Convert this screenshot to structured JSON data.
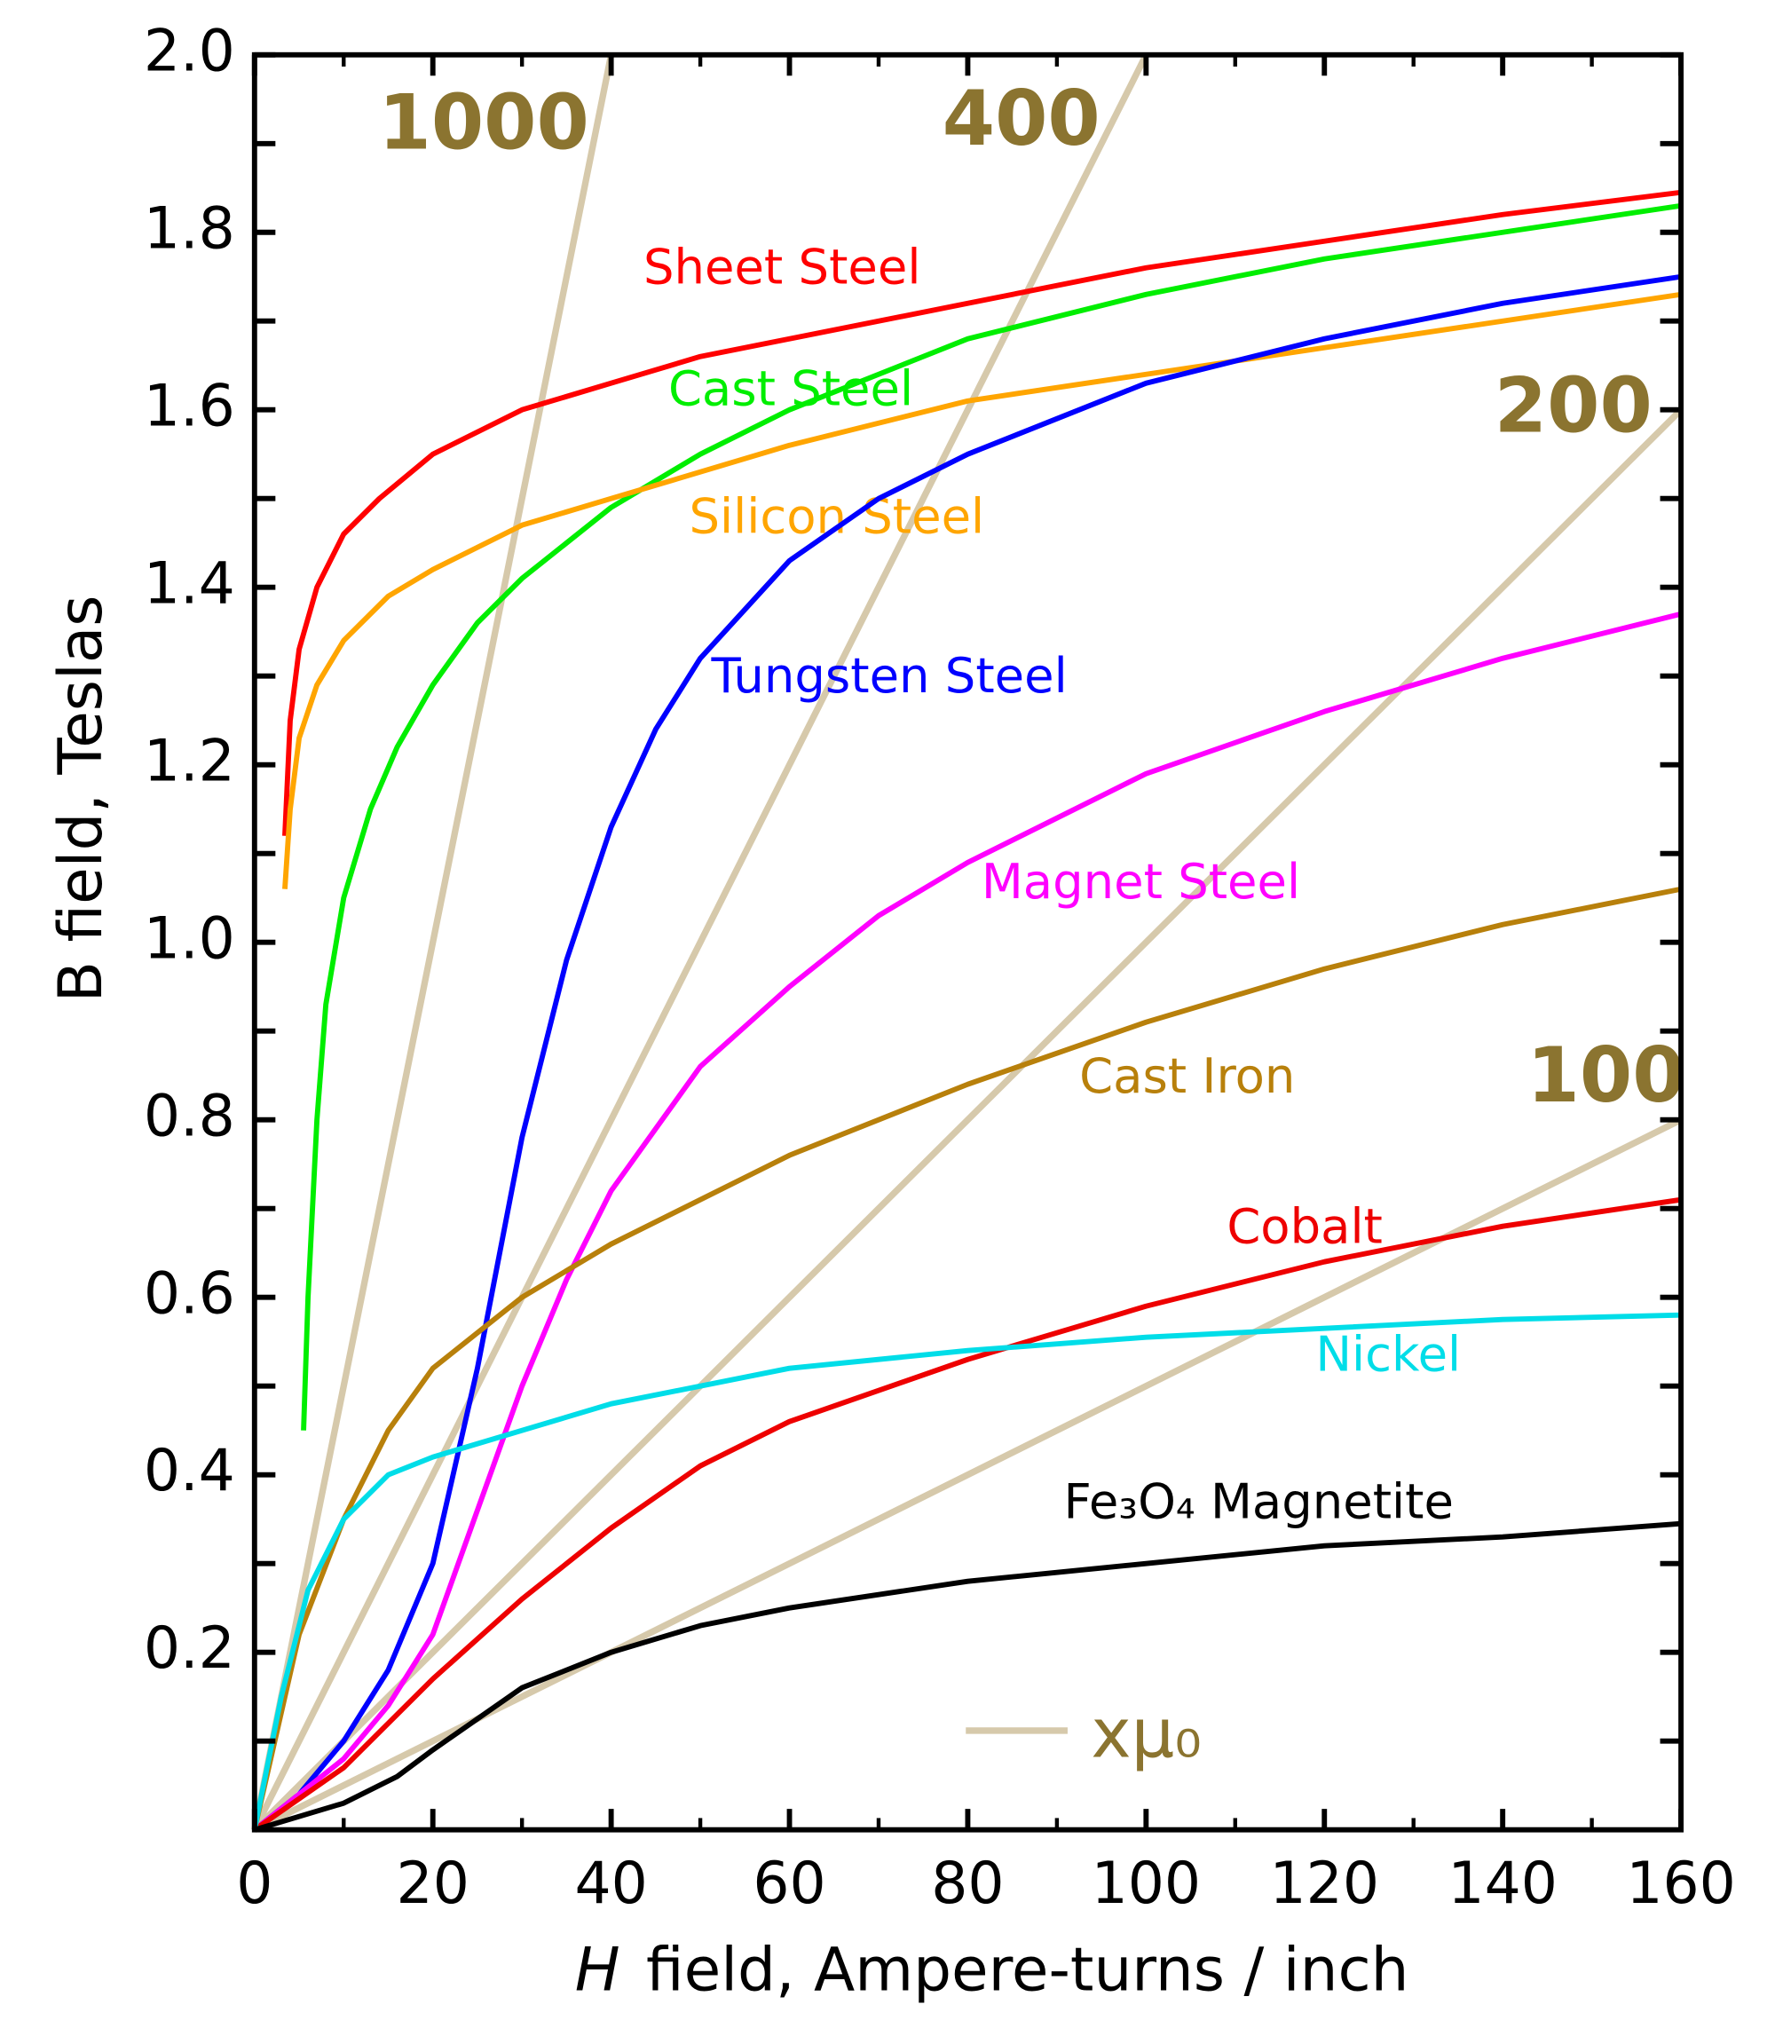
{
  "chart_data": {
    "type": "line",
    "x_label_var": "H",
    "x_label": "field, Ampere-turns / inch",
    "y_label": "B field, Teslas",
    "xlim": [
      0,
      160
    ],
    "ylim": [
      0,
      2
    ],
    "xticks": [
      0,
      20,
      40,
      60,
      80,
      100,
      120,
      140,
      160
    ],
    "yticks": [
      0.2,
      0.4,
      0.6,
      0.8,
      {
        "value": 1,
        "label": "1.0"
      },
      1.2,
      1.4,
      1.6,
      1.8,
      {
        "value": 2,
        "label": "2.0"
      }
    ],
    "xminor": [
      10,
      30,
      50,
      70,
      90,
      110,
      130,
      150
    ],
    "yminor": [
      0.1,
      0.3,
      0.5,
      0.7,
      0.9,
      1.1,
      1.3,
      1.5,
      1.7,
      1.9
    ],
    "series": [
      {
        "name": "Sheet Steel",
        "color": "#ff0000",
        "x": [
          3.4,
          4,
          5,
          7,
          10,
          14,
          20,
          30,
          40,
          50,
          60,
          80,
          100,
          120,
          140,
          160
        ],
        "values": [
          1.12,
          1.25,
          1.33,
          1.4,
          1.46,
          1.5,
          1.55,
          1.6,
          1.63,
          1.66,
          1.68,
          1.72,
          1.76,
          1.79,
          1.82,
          1.845
        ]
      },
      {
        "name": "Cast Steel",
        "color": "#00ee00",
        "x": [
          5.5,
          6,
          7,
          8,
          10,
          13,
          16,
          20,
          25,
          30,
          40,
          50,
          60,
          80,
          100,
          120,
          140,
          160
        ],
        "values": [
          0.45,
          0.6,
          0.8,
          0.93,
          1.05,
          1.15,
          1.22,
          1.29,
          1.36,
          1.41,
          1.49,
          1.55,
          1.6,
          1.68,
          1.73,
          1.77,
          1.8,
          1.83
        ]
      },
      {
        "name": "Silicon Steel",
        "color": "#ffa500",
        "x": [
          3.4,
          4,
          5,
          7,
          10,
          15,
          20,
          30,
          40,
          60,
          80,
          100,
          120,
          140,
          160
        ],
        "values": [
          1.06,
          1.15,
          1.23,
          1.29,
          1.34,
          1.39,
          1.42,
          1.47,
          1.5,
          1.56,
          1.61,
          1.64,
          1.67,
          1.7,
          1.73
        ]
      },
      {
        "name": "Tungsten Steel",
        "color": "#0000ff",
        "x": [
          0,
          5,
          10,
          15,
          20,
          25,
          30,
          35,
          40,
          45,
          50,
          60,
          70,
          80,
          100,
          120,
          140,
          160
        ],
        "values": [
          0,
          0.04,
          0.1,
          0.18,
          0.3,
          0.52,
          0.78,
          0.98,
          1.13,
          1.24,
          1.32,
          1.43,
          1.5,
          1.55,
          1.63,
          1.68,
          1.72,
          1.75
        ]
      },
      {
        "name": "Magnet Steel",
        "color": "#ff00ff",
        "x": [
          0,
          10,
          15,
          20,
          25,
          30,
          35,
          40,
          50,
          60,
          70,
          80,
          100,
          120,
          140,
          160
        ],
        "values": [
          0,
          0.08,
          0.14,
          0.22,
          0.36,
          0.5,
          0.62,
          0.72,
          0.86,
          0.95,
          1.03,
          1.09,
          1.19,
          1.26,
          1.32,
          1.37
        ]
      },
      {
        "name": "Cast Iron",
        "color": "#b8800b",
        "x": [
          0,
          5,
          10,
          15,
          20,
          30,
          40,
          60,
          80,
          100,
          120,
          140,
          160
        ],
        "values": [
          0,
          0.22,
          0.35,
          0.45,
          0.52,
          0.6,
          0.66,
          0.76,
          0.84,
          0.91,
          0.97,
          1.02,
          1.06
        ]
      },
      {
        "name": "Cobalt",
        "color": "#ee0000",
        "x": [
          0,
          10,
          20,
          30,
          40,
          50,
          60,
          80,
          100,
          120,
          140,
          160
        ],
        "values": [
          0,
          0.07,
          0.17,
          0.26,
          0.34,
          0.41,
          0.46,
          0.53,
          0.59,
          0.64,
          0.68,
          0.71
        ]
      },
      {
        "name": "Nickel",
        "color": "#00dde8",
        "x": [
          0,
          3,
          6,
          10,
          15,
          20,
          30,
          40,
          60,
          80,
          100,
          120,
          140,
          160
        ],
        "values": [
          0,
          0.15,
          0.27,
          0.35,
          0.4,
          0.42,
          0.45,
          0.48,
          0.52,
          0.54,
          0.555,
          0.565,
          0.575,
          0.58
        ]
      },
      {
        "name": "Fe₃O₄ Magnetite",
        "color": "#000000",
        "x": [
          0,
          10,
          16,
          20,
          30,
          40,
          50,
          60,
          80,
          100,
          120,
          140,
          160
        ],
        "values": [
          0,
          0.03,
          0.06,
          0.09,
          0.16,
          0.2,
          0.23,
          0.25,
          0.28,
          0.3,
          0.32,
          0.33,
          0.345
        ]
      }
    ],
    "reference_lines": {
      "color": "#d6c9ab",
      "label_color": "#8b7430",
      "legend_label": "xμ₀",
      "lines": [
        {
          "label": "1000",
          "x": [
            0,
            40
          ],
          "values": [
            0,
            2
          ]
        },
        {
          "label": "400",
          "x": [
            0,
            100
          ],
          "values": [
            0,
            2
          ]
        },
        {
          "label": "200",
          "x": [
            0,
            160
          ],
          "values": [
            0,
            1.6
          ]
        },
        {
          "label": "100",
          "x": [
            0,
            160
          ],
          "values": [
            0,
            0.8
          ]
        }
      ]
    }
  }
}
